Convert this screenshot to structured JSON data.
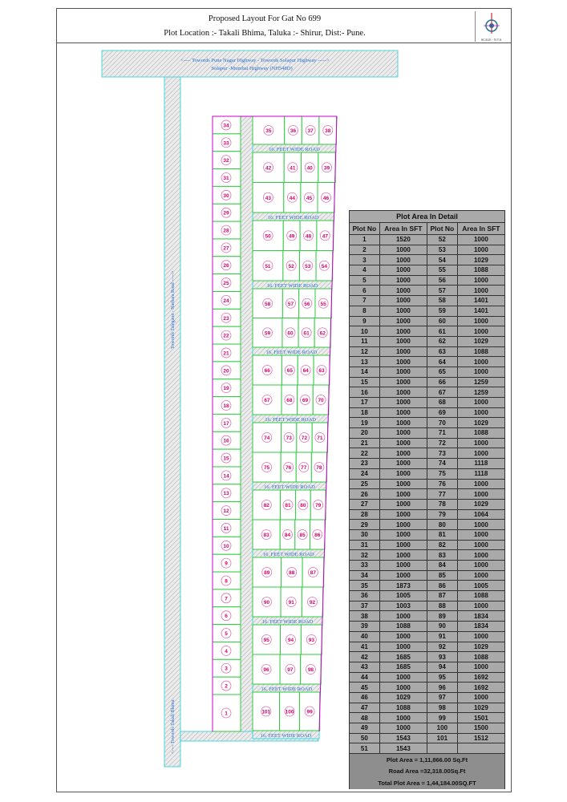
{
  "header": {
    "title": "Proposed Layout For Gat No 699",
    "location": "Plot Location :- Takali Bhima, Taluka :- Shirur, Dist:- Pune.",
    "scale": "SCALE - N.T.S."
  },
  "roads": {
    "highway_line1": "<---- Towords Pune Nagar Highway  - Towords Solapur Highway ----->",
    "highway_line2": "Solapur -Mumbai Highway (NH548D)",
    "left_road": "Towords Talegaon - Narhara Road ----->",
    "bottom_road": "<---- Towords Takali Bhima",
    "internal_road": "16. FEET WIDE ROAD"
  },
  "colors": {
    "plot_border": "#2ecc40",
    "boundary": "#cc00cc",
    "road_border": "#40d8e0",
    "road_text": "#2a6fd6",
    "plot_number": "#d4006a",
    "table_bg": "#a9a9a9"
  },
  "layout": {
    "left_column": [
      34,
      33,
      32,
      31,
      30,
      29,
      28,
      27,
      26,
      25,
      24,
      23,
      22,
      21,
      20,
      19,
      18,
      17,
      16,
      15,
      14,
      13,
      12,
      11,
      10,
      9,
      8,
      7,
      6,
      5,
      4,
      3,
      2,
      1
    ],
    "blocks": [
      [
        [
          35,
          36,
          37,
          38
        ]
      ],
      [
        [
          42,
          41,
          40,
          39
        ],
        [
          43,
          44,
          45,
          46
        ]
      ],
      [
        [
          50,
          49,
          48,
          47
        ],
        [
          51,
          52,
          53,
          54
        ]
      ],
      [
        [
          58,
          57,
          56,
          55
        ],
        [
          59,
          60,
          61,
          62
        ]
      ],
      [
        [
          66,
          65,
          64,
          63
        ],
        [
          67,
          68,
          69,
          70
        ]
      ],
      [
        [
          74,
          73,
          72,
          71
        ],
        [
          75,
          76,
          77,
          78
        ]
      ],
      [
        [
          82,
          81,
          80,
          79
        ],
        [
          83,
          84,
          85,
          86
        ]
      ],
      [
        [
          89,
          88,
          87
        ],
        [
          90,
          91,
          92
        ]
      ],
      [
        [
          95,
          94,
          93
        ],
        [
          96,
          97,
          98
        ]
      ],
      [
        [
          101,
          100,
          99
        ]
      ]
    ]
  },
  "table": {
    "title": "Plot Area In Detail",
    "headers": [
      "Plot No",
      "Area In SFT",
      "Plot No",
      "Area In SFT"
    ],
    "rows": [
      [
        "1",
        "1520",
        "52",
        "1000"
      ],
      [
        "2",
        "1000",
        "53",
        "1000"
      ],
      [
        "3",
        "1000",
        "54",
        "1029"
      ],
      [
        "4",
        "1000",
        "55",
        "1088"
      ],
      [
        "5",
        "1000",
        "56",
        "1000"
      ],
      [
        "6",
        "1000",
        "57",
        "1000"
      ],
      [
        "7",
        "1000",
        "58",
        "1401"
      ],
      [
        "8",
        "1000",
        "59",
        "1401"
      ],
      [
        "9",
        "1000",
        "60",
        "1000"
      ],
      [
        "10",
        "1000",
        "61",
        "1000"
      ],
      [
        "11",
        "1000",
        "62",
        "1029"
      ],
      [
        "12",
        "1000",
        "63",
        "1088"
      ],
      [
        "13",
        "1000",
        "64",
        "1000"
      ],
      [
        "14",
        "1000",
        "65",
        "1000"
      ],
      [
        "15",
        "1000",
        "66",
        "1259"
      ],
      [
        "16",
        "1000",
        "67",
        "1259"
      ],
      [
        "17",
        "1000",
        "68",
        "1000"
      ],
      [
        "18",
        "1000",
        "69",
        "1000"
      ],
      [
        "19",
        "1000",
        "70",
        "1029"
      ],
      [
        "20",
        "1000",
        "71",
        "1088"
      ],
      [
        "21",
        "1000",
        "72",
        "1000"
      ],
      [
        "22",
        "1000",
        "73",
        "1000"
      ],
      [
        "23",
        "1000",
        "74",
        "1118"
      ],
      [
        "24",
        "1000",
        "75",
        "1118"
      ],
      [
        "25",
        "1000",
        "76",
        "1000"
      ],
      [
        "26",
        "1000",
        "77",
        "1000"
      ],
      [
        "27",
        "1000",
        "78",
        "1029"
      ],
      [
        "28",
        "1000",
        "79",
        "1064"
      ],
      [
        "29",
        "1000",
        "80",
        "1000"
      ],
      [
        "30",
        "1000",
        "81",
        "1000"
      ],
      [
        "31",
        "1000",
        "82",
        "1000"
      ],
      [
        "32",
        "1000",
        "83",
        "1000"
      ],
      [
        "33",
        "1000",
        "84",
        "1000"
      ],
      [
        "34",
        "1000",
        "85",
        "1000"
      ],
      [
        "35",
        "1873",
        "86",
        "1005"
      ],
      [
        "36",
        "1005",
        "87",
        "1088"
      ],
      [
        "37",
        "1003",
        "88",
        "1000"
      ],
      [
        "38",
        "1000",
        "89",
        "1834"
      ],
      [
        "39",
        "1088",
        "90",
        "1834"
      ],
      [
        "40",
        "1000",
        "91",
        "1000"
      ],
      [
        "41",
        "1000",
        "92",
        "1029"
      ],
      [
        "42",
        "1685",
        "93",
        "1088"
      ],
      [
        "43",
        "1685",
        "94",
        "1000"
      ],
      [
        "44",
        "1000",
        "95",
        "1692"
      ],
      [
        "45",
        "1000",
        "96",
        "1692"
      ],
      [
        "46",
        "1029",
        "97",
        "1000"
      ],
      [
        "47",
        "1088",
        "98",
        "1029"
      ],
      [
        "48",
        "1000",
        "99",
        "1501"
      ],
      [
        "49",
        "1000",
        "100",
        "1500"
      ],
      [
        "50",
        "1543",
        "101",
        "1512"
      ],
      [
        "51",
        "1543",
        "",
        ""
      ]
    ],
    "plot_area": "Plot Area = 1,11,866.00 Sq.Ft",
    "road_area": "Road Area =32,318.00Sq.Ft",
    "total_area": "Total Plot Area = 1,44,184.00SQ.FT"
  }
}
